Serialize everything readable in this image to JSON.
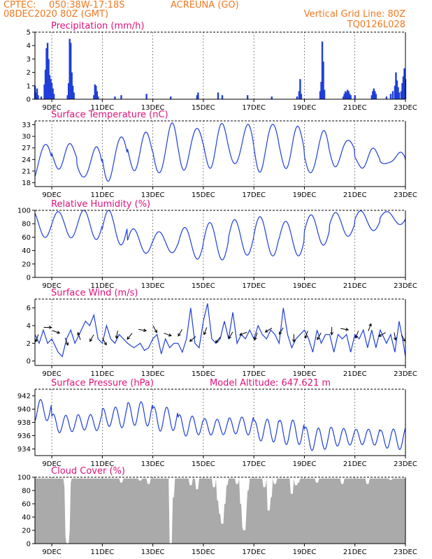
{
  "header": {
    "source": "CPTEC:",
    "coords": "050:38W-17:18S",
    "station": "ACREUNA (GO)",
    "run": "08DEC2020 80Z (GMT)",
    "vgrid": "Vertical Grid Line: 80Z",
    "code": "TQ0126L028"
  },
  "colors": {
    "header": "#f07820",
    "panel_title": "#e0107a",
    "series": "#1f3fd8",
    "bars": "#1f3fd8",
    "cloud": "#aaaaaa",
    "wind_arrow": "#000000"
  },
  "x_axis": {
    "start": "2020-12-08T08:00Z",
    "end": "2020-12-23T00:00Z",
    "tick_labels": [
      "9DEC",
      "11DEC",
      "13DEC",
      "15DEC",
      "17DEC",
      "19DEC",
      "21DEC",
      "23DEC"
    ],
    "vertical_grid": "dotted"
  },
  "chart_data": [
    {
      "type": "bar",
      "title": "Precipitation (mm/h)",
      "ylim": [
        0,
        5
      ],
      "yticks": [
        0,
        1,
        2,
        3,
        4,
        5
      ],
      "events": [
        [
          "12-08 08:00",
          1.0
        ],
        [
          "12-08 09:00",
          0.5
        ],
        [
          "12-08 10:00",
          0.8
        ],
        [
          "12-08 11:00",
          0.3
        ],
        [
          "12-08 14:00",
          0.2
        ],
        [
          "12-08 17:00",
          1.1
        ],
        [
          "12-08 18:00",
          2.2
        ],
        [
          "12-08 19:00",
          3.8
        ],
        [
          "12-08 20:00",
          4.2
        ],
        [
          "12-08 21:00",
          3.0
        ],
        [
          "12-08 22:00",
          1.8
        ],
        [
          "12-08 23:00",
          1.5
        ],
        [
          "12-09 00:00",
          1.2
        ],
        [
          "12-09 01:00",
          0.8
        ],
        [
          "12-09 02:00",
          0.4
        ],
        [
          "12-09 15:00",
          0.3
        ],
        [
          "12-09 16:00",
          1.2
        ],
        [
          "12-09 17:00",
          4.5
        ],
        [
          "12-09 18:00",
          4.2
        ],
        [
          "12-09 19:00",
          2.0
        ],
        [
          "12-09 20:00",
          1.0
        ],
        [
          "12-09 21:00",
          0.5
        ],
        [
          "12-10 16:00",
          0.3
        ],
        [
          "12-10 17:00",
          1.1
        ],
        [
          "12-10 18:00",
          1.0
        ],
        [
          "12-10 19:00",
          0.6
        ],
        [
          "12-10 20:00",
          0.2
        ],
        [
          "12-11 12:00",
          0.2
        ],
        [
          "12-11 18:00",
          0.3
        ],
        [
          "12-12 18:00",
          0.4
        ],
        [
          "12-13 17:00",
          0.2
        ],
        [
          "12-14 18:00",
          0.3
        ],
        [
          "12-14 19:00",
          0.5
        ],
        [
          "12-15 14:00",
          0.5
        ],
        [
          "12-15 18:00",
          0.3
        ],
        [
          "12-16 18:00",
          0.3
        ],
        [
          "12-17 17:00",
          0.2
        ],
        [
          "12-18 17:00",
          0.2
        ],
        [
          "12-18 19:00",
          0.6
        ],
        [
          "12-18 20:00",
          1.5
        ],
        [
          "12-18 21:00",
          0.4
        ],
        [
          "12-19 15:00",
          0.6
        ],
        [
          "12-19 16:00",
          1.3
        ],
        [
          "12-19 17:00",
          4.3
        ],
        [
          "12-19 18:00",
          2.8
        ],
        [
          "12-19 19:00",
          0.7
        ],
        [
          "12-20 13:00",
          0.2
        ],
        [
          "12-20 14:00",
          0.4
        ],
        [
          "12-20 15:00",
          0.6
        ],
        [
          "12-20 16:00",
          0.5
        ],
        [
          "12-20 17:00",
          0.7
        ],
        [
          "12-20 18:00",
          0.6
        ],
        [
          "12-20 19:00",
          0.4
        ],
        [
          "12-20 20:00",
          0.3
        ],
        [
          "12-21 00:00",
          0.3
        ],
        [
          "12-21 16:00",
          0.3
        ],
        [
          "12-21 17:00",
          0.6
        ],
        [
          "12-21 18:00",
          0.8
        ],
        [
          "12-21 19:00",
          0.6
        ],
        [
          "12-21 20:00",
          0.4
        ],
        [
          "12-22 06:00",
          0.2
        ],
        [
          "12-22 10:00",
          0.4
        ],
        [
          "12-22 12:00",
          0.6
        ],
        [
          "12-22 14:00",
          1.0
        ],
        [
          "12-22 15:00",
          2.0
        ],
        [
          "12-22 16:00",
          1.4
        ],
        [
          "12-22 17:00",
          0.9
        ],
        [
          "12-22 18:00",
          0.5
        ],
        [
          "12-22 20:00",
          0.6
        ],
        [
          "12-22 21:00",
          1.2
        ],
        [
          "12-22 22:00",
          1.7
        ],
        [
          "12-22 23:00",
          2.3
        ],
        [
          "12-23 00:00",
          1.5
        ]
      ]
    },
    {
      "type": "line",
      "title": "Surface Temperature (nC)",
      "ylim": [
        17,
        34
      ],
      "yticks": [
        18,
        21,
        24,
        27,
        30,
        33
      ],
      "daily": [
        [
          "2020-12-08",
          18.5,
          28.0
        ],
        [
          "2020-12-09",
          22.0,
          28.2
        ],
        [
          "2020-12-10",
          19.0,
          27.0
        ],
        [
          "2020-12-11",
          18.5,
          30.0
        ],
        [
          "2020-12-12",
          21.5,
          31.0
        ],
        [
          "2020-12-13",
          20.0,
          33.0
        ],
        [
          "2020-12-14",
          21.5,
          32.5
        ],
        [
          "2020-12-15",
          22.0,
          33.0
        ],
        [
          "2020-12-16",
          22.5,
          33.0
        ],
        [
          "2020-12-17",
          21.0,
          33.5
        ],
        [
          "2020-12-18",
          22.0,
          32.5
        ],
        [
          "2020-12-19",
          20.0,
          31.0
        ],
        [
          "2020-12-20",
          22.5,
          29.5
        ],
        [
          "2020-12-21",
          22.0,
          26.5
        ],
        [
          "2020-12-22",
          22.5,
          25.5
        ],
        [
          "2020-12-23",
          23.5,
          24.0
        ]
      ]
    },
    {
      "type": "line",
      "title": "Relative Humidity (%)",
      "ylim": [
        0,
        100
      ],
      "yticks": [
        0,
        20,
        40,
        60,
        80,
        100
      ],
      "daily": [
        [
          "2020-12-08",
          100,
          58
        ],
        [
          "2020-12-09",
          100,
          58
        ],
        [
          "2020-12-10",
          100,
          58
        ],
        [
          "2020-12-11",
          98,
          50
        ],
        [
          "2020-12-12",
          72,
          35
        ],
        [
          "2020-12-13",
          70,
          35
        ],
        [
          "2020-12-14",
          75,
          28
        ],
        [
          "2020-12-15",
          80,
          28
        ],
        [
          "2020-12-16",
          85,
          33
        ],
        [
          "2020-12-17",
          92,
          30
        ],
        [
          "2020-12-18",
          85,
          32
        ],
        [
          "2020-12-19",
          92,
          50
        ],
        [
          "2020-12-20",
          95,
          62
        ],
        [
          "2020-12-21",
          100,
          68
        ],
        [
          "2020-12-22",
          100,
          78
        ],
        [
          "2020-12-23",
          92,
          78
        ]
      ]
    },
    {
      "type": "line",
      "title": "Surface Wind (m/s)",
      "ylim": [
        -0.5,
        7
      ],
      "yticks": [
        0,
        2,
        4,
        6
      ],
      "speed": [
        [
          "12-08 08:00",
          3.0
        ],
        [
          "12-08 12:00",
          2.0
        ],
        [
          "12-08 16:00",
          3.5
        ],
        [
          "12-08 20:00",
          2.0
        ],
        [
          "12-09 00:00",
          2.5
        ],
        [
          "12-09 06:00",
          1.0
        ],
        [
          "12-09 10:00",
          0.5
        ],
        [
          "12-09 14:00",
          2.5
        ],
        [
          "12-09 18:00",
          3.5
        ],
        [
          "12-09 22:00",
          2.0
        ],
        [
          "12-10 04:00",
          3.5
        ],
        [
          "12-10 08:00",
          4.5
        ],
        [
          "12-10 12:00",
          4.0
        ],
        [
          "12-10 16:00",
          5.2
        ],
        [
          "12-10 20:00",
          2.5
        ],
        [
          "12-11 00:00",
          2.0
        ],
        [
          "12-11 04:00",
          4.0
        ],
        [
          "12-11 08:00",
          2.5
        ],
        [
          "12-11 12:00",
          2.0
        ],
        [
          "12-11 16:00",
          3.0
        ],
        [
          "12-11 20:00",
          2.5
        ],
        [
          "12-12 00:00",
          2.0
        ],
        [
          "12-12 06:00",
          1.5
        ],
        [
          "12-12 12:00",
          2.0
        ],
        [
          "12-12 16:00",
          1.2
        ],
        [
          "12-12 20:00",
          1.5
        ],
        [
          "12-13 00:00",
          2.5
        ],
        [
          "12-13 04:00",
          3.0
        ],
        [
          "12-13 08:00",
          0.8
        ],
        [
          "12-13 12:00",
          2.5
        ],
        [
          "12-13 16:00",
          1.5
        ],
        [
          "12-13 20:00",
          2.0
        ],
        [
          "12-14 00:00",
          2.0
        ],
        [
          "12-14 04:00",
          1.0
        ],
        [
          "12-14 08:00",
          2.5
        ],
        [
          "12-14 12:00",
          6.0
        ],
        [
          "12-14 16:00",
          2.0
        ],
        [
          "12-14 20:00",
          1.5
        ],
        [
          "12-15 00:00",
          4.5
        ],
        [
          "12-15 04:00",
          6.5
        ],
        [
          "12-15 08:00",
          2.5
        ],
        [
          "12-15 12:00",
          2.0
        ],
        [
          "12-15 16:00",
          2.5
        ],
        [
          "12-15 20:00",
          4.5
        ],
        [
          "12-16 00:00",
          2.5
        ],
        [
          "12-16 04:00",
          5.5
        ],
        [
          "12-16 08:00",
          2.0
        ],
        [
          "12-16 12:00",
          3.0
        ],
        [
          "12-16 16:00",
          2.5
        ],
        [
          "12-16 20:00",
          3.5
        ],
        [
          "12-17 00:00",
          2.5
        ],
        [
          "12-17 04:00",
          4.0
        ],
        [
          "12-17 08:00",
          3.0
        ],
        [
          "12-17 12:00",
          2.5
        ],
        [
          "12-17 16:00",
          3.5
        ],
        [
          "12-17 20:00",
          3.0
        ],
        [
          "12-18 00:00",
          2.0
        ],
        [
          "12-18 04:00",
          6.0
        ],
        [
          "12-18 08:00",
          3.0
        ],
        [
          "12-18 12:00",
          1.5
        ],
        [
          "12-18 16:00",
          2.5
        ],
        [
          "12-18 20:00",
          3.0
        ],
        [
          "12-19 00:00",
          3.5
        ],
        [
          "12-19 04:00",
          2.5
        ],
        [
          "12-19 08:00",
          1.0
        ],
        [
          "12-19 12:00",
          3.5
        ],
        [
          "12-19 16:00",
          2.0
        ],
        [
          "12-19 20:00",
          3.0
        ],
        [
          "12-20 00:00",
          3.0
        ],
        [
          "12-20 04:00",
          1.0
        ],
        [
          "12-20 08:00",
          3.0
        ],
        [
          "12-20 12:00",
          2.5
        ],
        [
          "12-20 16:00",
          3.0
        ],
        [
          "12-20 20:00",
          1.0
        ],
        [
          "12-21 00:00",
          3.0
        ],
        [
          "12-21 04:00",
          2.5
        ],
        [
          "12-21 08:00",
          3.5
        ],
        [
          "12-21 12:00",
          1.5
        ],
        [
          "12-21 16:00",
          3.5
        ],
        [
          "12-21 20:00",
          1.5
        ],
        [
          "12-22 00:00",
          3.5
        ],
        [
          "12-22 06:00",
          2.0
        ],
        [
          "12-22 10:00",
          3.0
        ],
        [
          "12-22 14:00",
          1.0
        ],
        [
          "12-22 18:00",
          4.5
        ],
        [
          "12-22 22:00",
          2.0
        ],
        [
          "12-23 00:00",
          0.5
        ]
      ],
      "arrows": [
        [
          "12-08 10:00",
          2.6,
          200
        ],
        [
          "12-08 20:00",
          3.8,
          90
        ],
        [
          "12-09 04:00",
          3.3,
          110
        ],
        [
          "12-09 14:00",
          2.2,
          160
        ],
        [
          "12-10 02:00",
          2.8,
          340
        ],
        [
          "12-10 14:00",
          2.6,
          210
        ],
        [
          "12-11 02:00",
          2.2,
          150
        ],
        [
          "12-11 14:00",
          3.0,
          190
        ],
        [
          "12-12 02:00",
          2.8,
          220
        ],
        [
          "12-12 14:00",
          3.5,
          100
        ],
        [
          "12-13 02:00",
          3.6,
          150
        ],
        [
          "12-13 14:00",
          3.0,
          110
        ],
        [
          "12-14 02:00",
          3.2,
          210
        ],
        [
          "12-14 14:00",
          2.5,
          230
        ],
        [
          "12-15 02:00",
          3.4,
          200
        ],
        [
          "12-15 14:00",
          2.4,
          220
        ],
        [
          "12-16 02:00",
          2.9,
          210
        ],
        [
          "12-16 14:00",
          3.1,
          250
        ],
        [
          "12-17 02:00",
          2.8,
          200
        ],
        [
          "12-17 14:00",
          3.5,
          240
        ],
        [
          "12-18 02:00",
          3.4,
          210
        ],
        [
          "12-18 14:00",
          2.6,
          180
        ],
        [
          "12-19 02:00",
          3.0,
          200
        ],
        [
          "12-19 14:00",
          2.8,
          210
        ],
        [
          "12-20 02:00",
          3.4,
          180
        ],
        [
          "12-20 14:00",
          3.6,
          100
        ],
        [
          "12-21 02:00",
          3.0,
          200
        ],
        [
          "12-21 14:00",
          3.8,
          20
        ],
        [
          "12-22 02:00",
          3.0,
          240
        ],
        [
          "12-22 14:00",
          2.8,
          170
        ],
        [
          "12-22 22:00",
          2.6,
          150
        ]
      ]
    },
    {
      "type": "line",
      "title": "Surface Pressure (hPa)",
      "extra_label": "Model Altitude:  647.621  m",
      "ylim": [
        933,
        943
      ],
      "yticks": [
        934,
        936,
        938,
        940,
        942
      ],
      "daily_mean": [
        [
          "2020-12-08",
          939.8
        ],
        [
          "2020-12-09",
          937.8
        ],
        [
          "2020-12-10",
          938.0
        ],
        [
          "2020-12-11",
          938.8
        ],
        [
          "2020-12-12",
          939.3
        ],
        [
          "2020-12-13",
          938.5
        ],
        [
          "2020-12-14",
          937.5
        ],
        [
          "2020-12-15",
          937.3
        ],
        [
          "2020-12-16",
          937.5
        ],
        [
          "2020-12-17",
          936.8
        ],
        [
          "2020-12-18",
          936.5
        ],
        [
          "2020-12-19",
          935.5
        ],
        [
          "2020-12-20",
          935.8
        ],
        [
          "2020-12-21",
          935.8
        ],
        [
          "2020-12-22",
          935.5
        ],
        [
          "2020-12-23",
          935.0
        ]
      ],
      "amplitude": 1.5
    },
    {
      "type": "area",
      "title": "Cloud Cover (%)",
      "ylim": [
        0,
        100
      ],
      "yticks": [
        0,
        20,
        40,
        60,
        80,
        100
      ],
      "default_value": 98,
      "dips": [
        [
          "12-09 13:00",
          85
        ],
        [
          "12-09 14:00",
          10
        ],
        [
          "12-09 15:00",
          0
        ],
        [
          "12-09 16:00",
          20
        ],
        [
          "12-09 17:00",
          92
        ],
        [
          "12-11 18:00",
          92
        ],
        [
          "12-12 12:00",
          95
        ],
        [
          "12-12 20:00",
          90
        ],
        [
          "12-13 17:00",
          0
        ],
        [
          "12-13 19:00",
          70
        ],
        [
          "12-14 12:00",
          88
        ],
        [
          "12-14 18:00",
          82
        ],
        [
          "12-15 10:00",
          85
        ],
        [
          "12-15 14:00",
          65
        ],
        [
          "12-15 16:00",
          45
        ],
        [
          "12-15 18:00",
          30
        ],
        [
          "12-15 20:00",
          60
        ],
        [
          "12-15 22:00",
          88
        ],
        [
          "12-16 08:00",
          90
        ],
        [
          "12-16 12:00",
          60
        ],
        [
          "12-16 14:00",
          25
        ],
        [
          "12-16 15:00",
          20
        ],
        [
          "12-16 16:00",
          50
        ],
        [
          "12-16 18:00",
          80
        ],
        [
          "12-17 10:00",
          85
        ],
        [
          "12-17 14:00",
          50
        ],
        [
          "12-17 16:00",
          70
        ],
        [
          "12-17 20:00",
          90
        ],
        [
          "12-18 12:00",
          75
        ],
        [
          "12-18 16:00",
          88
        ],
        [
          "12-18 18:00",
          92
        ],
        [
          "12-19 12:00",
          92
        ],
        [
          "12-20 12:00",
          90
        ],
        [
          "12-21 12:00",
          90
        ],
        [
          "12-22 10:00",
          96
        ]
      ]
    }
  ]
}
